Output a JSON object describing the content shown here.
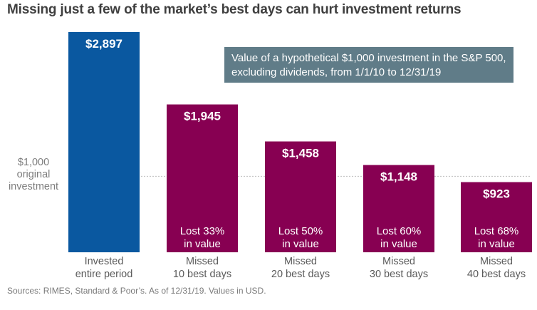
{
  "title": "Missing just a few of the market’s best days can hurt investment returns",
  "sources": "Sources: RIMES, Standard & Poor’s. As of 12/31/19. Values in USD.",
  "note": {
    "line1": "Value of a hypothetical $1,000 investment in the S&P 500,",
    "line2": "excluding dividends, from 1/1/10 to 12/31/19"
  },
  "reference": {
    "value": 1000,
    "line1": "$1,000",
    "line2": "original",
    "line3": "investment"
  },
  "colors": {
    "invested": "#0a58a0",
    "missed": "#870052",
    "note_bg": "#607c88",
    "reference_line": "#bdbdbd"
  },
  "chart_data": {
    "type": "bar",
    "title": "Missing just a few of the market’s best days can hurt investment returns",
    "xlabel": "",
    "ylabel": "",
    "ylim": [
      0,
      2897
    ],
    "grid": false,
    "categories": [
      {
        "line1": "Invested",
        "line2": "entire period"
      },
      {
        "line1": "Missed",
        "line2": "10 best days"
      },
      {
        "line1": "Missed",
        "line2": "20 best days"
      },
      {
        "line1": "Missed",
        "line2": "30 best days"
      },
      {
        "line1": "Missed",
        "line2": "40 best days"
      }
    ],
    "values": [
      2897,
      1945,
      1458,
      1148,
      923
    ],
    "value_labels": [
      "$2,897",
      "$1,945",
      "$1,458",
      "$1,148",
      "$923"
    ],
    "loss_labels": [
      null,
      {
        "line1": "Lost 33%",
        "line2": "in value"
      },
      {
        "line1": "Lost 50%",
        "line2": "in value"
      },
      {
        "line1": "Lost 60%",
        "line2": "in value"
      },
      {
        "line1": "Lost 68%",
        "line2": "in value"
      }
    ]
  }
}
